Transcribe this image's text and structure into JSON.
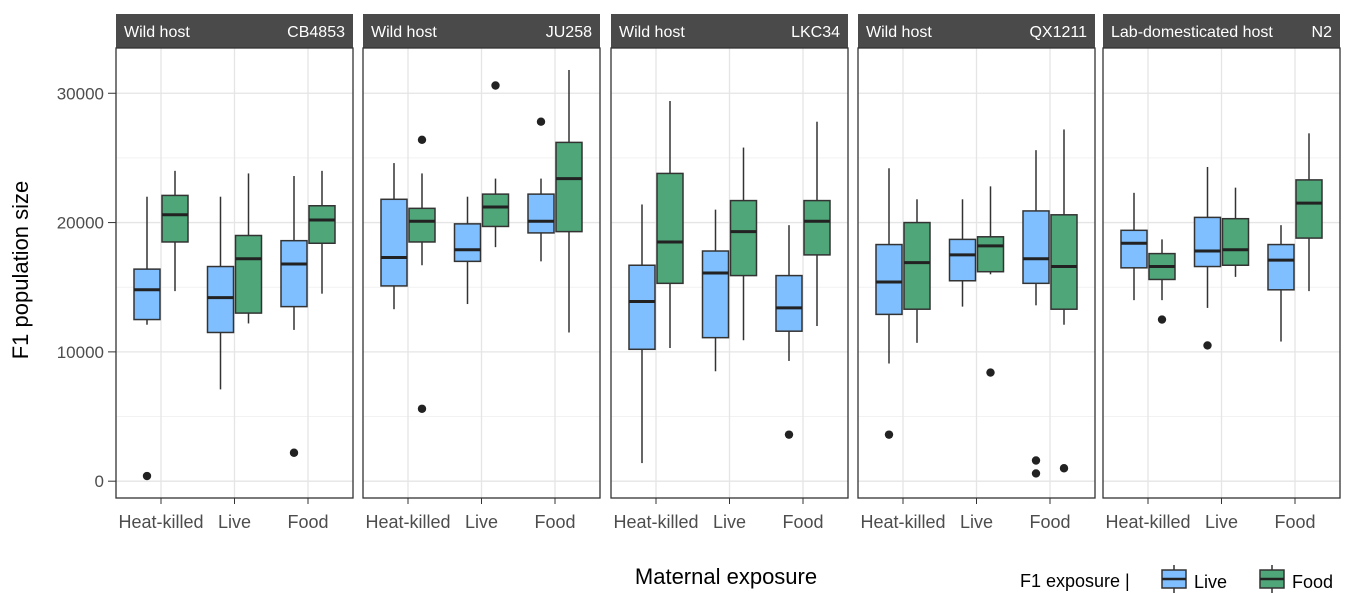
{
  "chart_data": {
    "type": "box",
    "ylabel": "F1 population size",
    "xlabel": "Maternal exposure",
    "categories": [
      "Heat-killed",
      "Live",
      "Food"
    ],
    "ylim": [
      -1300,
      33500
    ],
    "yticks": [
      0,
      10000,
      20000,
      30000
    ],
    "ytick_labels": [
      "0",
      "10000",
      "20000",
      "30000"
    ],
    "grid": true,
    "legend": {
      "title": "F1 exposure |",
      "position": "bottom-right",
      "items": [
        {
          "name": "Live",
          "color": "#7FBFFF"
        },
        {
          "name": "Food",
          "color": "#4FA779"
        }
      ]
    },
    "panels": [
      {
        "left_label": "Wild host",
        "right_label": "CB4853",
        "boxes": [
          {
            "category": "Heat-killed",
            "series": "Live",
            "whisker_low": 12100,
            "q1": 12500,
            "median": 14800,
            "q3": 16400,
            "whisker_high": 22000,
            "outliers": [
              400
            ]
          },
          {
            "category": "Heat-killed",
            "series": "Food",
            "whisker_low": 14700,
            "q1": 18500,
            "median": 20600,
            "q3": 22100,
            "whisker_high": 24000,
            "outliers": []
          },
          {
            "category": "Live",
            "series": "Live",
            "whisker_low": 7100,
            "q1": 11500,
            "median": 14200,
            "q3": 16600,
            "whisker_high": 22000,
            "outliers": []
          },
          {
            "category": "Live",
            "series": "Food",
            "whisker_low": 12200,
            "q1": 13000,
            "median": 17200,
            "q3": 19000,
            "whisker_high": 23800,
            "outliers": []
          },
          {
            "category": "Food",
            "series": "Live",
            "whisker_low": 11700,
            "q1": 13500,
            "median": 16800,
            "q3": 18600,
            "whisker_high": 23600,
            "outliers": [
              2200
            ]
          },
          {
            "category": "Food",
            "series": "Food",
            "whisker_low": 14500,
            "q1": 18400,
            "median": 20200,
            "q3": 21300,
            "whisker_high": 24000,
            "outliers": []
          }
        ]
      },
      {
        "left_label": "Wild host",
        "right_label": "JU258",
        "boxes": [
          {
            "category": "Heat-killed",
            "series": "Live",
            "whisker_low": 13300,
            "q1": 15100,
            "median": 17300,
            "q3": 21800,
            "whisker_high": 24600,
            "outliers": []
          },
          {
            "category": "Heat-killed",
            "series": "Food",
            "whisker_low": 16700,
            "q1": 18500,
            "median": 20100,
            "q3": 21100,
            "whisker_high": 23800,
            "outliers": [
              26400,
              5600
            ]
          },
          {
            "category": "Live",
            "series": "Live",
            "whisker_low": 13700,
            "q1": 17000,
            "median": 17900,
            "q3": 19900,
            "whisker_high": 22000,
            "outliers": []
          },
          {
            "category": "Live",
            "series": "Food",
            "whisker_low": 18100,
            "q1": 19700,
            "median": 21200,
            "q3": 22200,
            "whisker_high": 23400,
            "outliers": [
              30600
            ]
          },
          {
            "category": "Food",
            "series": "Live",
            "whisker_low": 17000,
            "q1": 19200,
            "median": 20100,
            "q3": 22200,
            "whisker_high": 23400,
            "outliers": [
              27800
            ]
          },
          {
            "category": "Food",
            "series": "Food",
            "whisker_low": 11500,
            "q1": 19300,
            "median": 23400,
            "q3": 26200,
            "whisker_high": 31800,
            "outliers": []
          }
        ]
      },
      {
        "left_label": "Wild host",
        "right_label": "LKC34",
        "boxes": [
          {
            "category": "Heat-killed",
            "series": "Live",
            "whisker_low": 1400,
            "q1": 10200,
            "median": 13900,
            "q3": 16700,
            "whisker_high": 21400,
            "outliers": []
          },
          {
            "category": "Heat-killed",
            "series": "Food",
            "whisker_low": 10300,
            "q1": 15300,
            "median": 18500,
            "q3": 23800,
            "whisker_high": 29400,
            "outliers": []
          },
          {
            "category": "Live",
            "series": "Live",
            "whisker_low": 8500,
            "q1": 11100,
            "median": 16100,
            "q3": 17800,
            "whisker_high": 21000,
            "outliers": []
          },
          {
            "category": "Live",
            "series": "Food",
            "whisker_low": 10900,
            "q1": 15900,
            "median": 19300,
            "q3": 21700,
            "whisker_high": 25800,
            "outliers": []
          },
          {
            "category": "Food",
            "series": "Live",
            "whisker_low": 9300,
            "q1": 11600,
            "median": 13400,
            "q3": 15900,
            "whisker_high": 19800,
            "outliers": [
              3600
            ]
          },
          {
            "category": "Food",
            "series": "Food",
            "whisker_low": 12000,
            "q1": 17500,
            "median": 20100,
            "q3": 21700,
            "whisker_high": 27800,
            "outliers": []
          }
        ]
      },
      {
        "left_label": "Wild host",
        "right_label": "QX1211",
        "boxes": [
          {
            "category": "Heat-killed",
            "series": "Live",
            "whisker_low": 9100,
            "q1": 12900,
            "median": 15400,
            "q3": 18300,
            "whisker_high": 24200,
            "outliers": [
              3600
            ]
          },
          {
            "category": "Heat-killed",
            "series": "Food",
            "whisker_low": 10700,
            "q1": 13300,
            "median": 16900,
            "q3": 20000,
            "whisker_high": 21800,
            "outliers": []
          },
          {
            "category": "Live",
            "series": "Live",
            "whisker_low": 13500,
            "q1": 15500,
            "median": 17500,
            "q3": 18700,
            "whisker_high": 21800,
            "outliers": []
          },
          {
            "category": "Live",
            "series": "Food",
            "whisker_low": 16000,
            "q1": 16200,
            "median": 18200,
            "q3": 18900,
            "whisker_high": 22800,
            "outliers": [
              8400
            ]
          },
          {
            "category": "Food",
            "series": "Live",
            "whisker_low": 13600,
            "q1": 15300,
            "median": 17200,
            "q3": 20900,
            "whisker_high": 25600,
            "outliers": [
              1600,
              600
            ]
          },
          {
            "category": "Food",
            "series": "Food",
            "whisker_low": 12100,
            "q1": 13300,
            "median": 16600,
            "q3": 20600,
            "whisker_high": 27200,
            "outliers": [
              1000
            ]
          }
        ]
      },
      {
        "left_label": "Lab-domesticated host",
        "right_label": "N2",
        "boxes": [
          {
            "category": "Heat-killed",
            "series": "Live",
            "whisker_low": 14000,
            "q1": 16500,
            "median": 18400,
            "q3": 19400,
            "whisker_high": 22300,
            "outliers": []
          },
          {
            "category": "Heat-killed",
            "series": "Food",
            "whisker_low": 14000,
            "q1": 15600,
            "median": 16600,
            "q3": 17600,
            "whisker_high": 18700,
            "outliers": [
              12500
            ]
          },
          {
            "category": "Live",
            "series": "Live",
            "whisker_low": 13400,
            "q1": 16600,
            "median": 17800,
            "q3": 20400,
            "whisker_high": 24300,
            "outliers": [
              10500
            ]
          },
          {
            "category": "Live",
            "series": "Food",
            "whisker_low": 15800,
            "q1": 16700,
            "median": 17900,
            "q3": 20300,
            "whisker_high": 22700,
            "outliers": []
          },
          {
            "category": "Food",
            "series": "Live",
            "whisker_low": 10800,
            "q1": 14800,
            "median": 17100,
            "q3": 18300,
            "whisker_high": 19800,
            "outliers": []
          },
          {
            "category": "Food",
            "series": "Food",
            "whisker_low": 14700,
            "q1": 18800,
            "median": 21500,
            "q3": 23300,
            "whisker_high": 26900,
            "outliers": []
          }
        ]
      }
    ]
  }
}
